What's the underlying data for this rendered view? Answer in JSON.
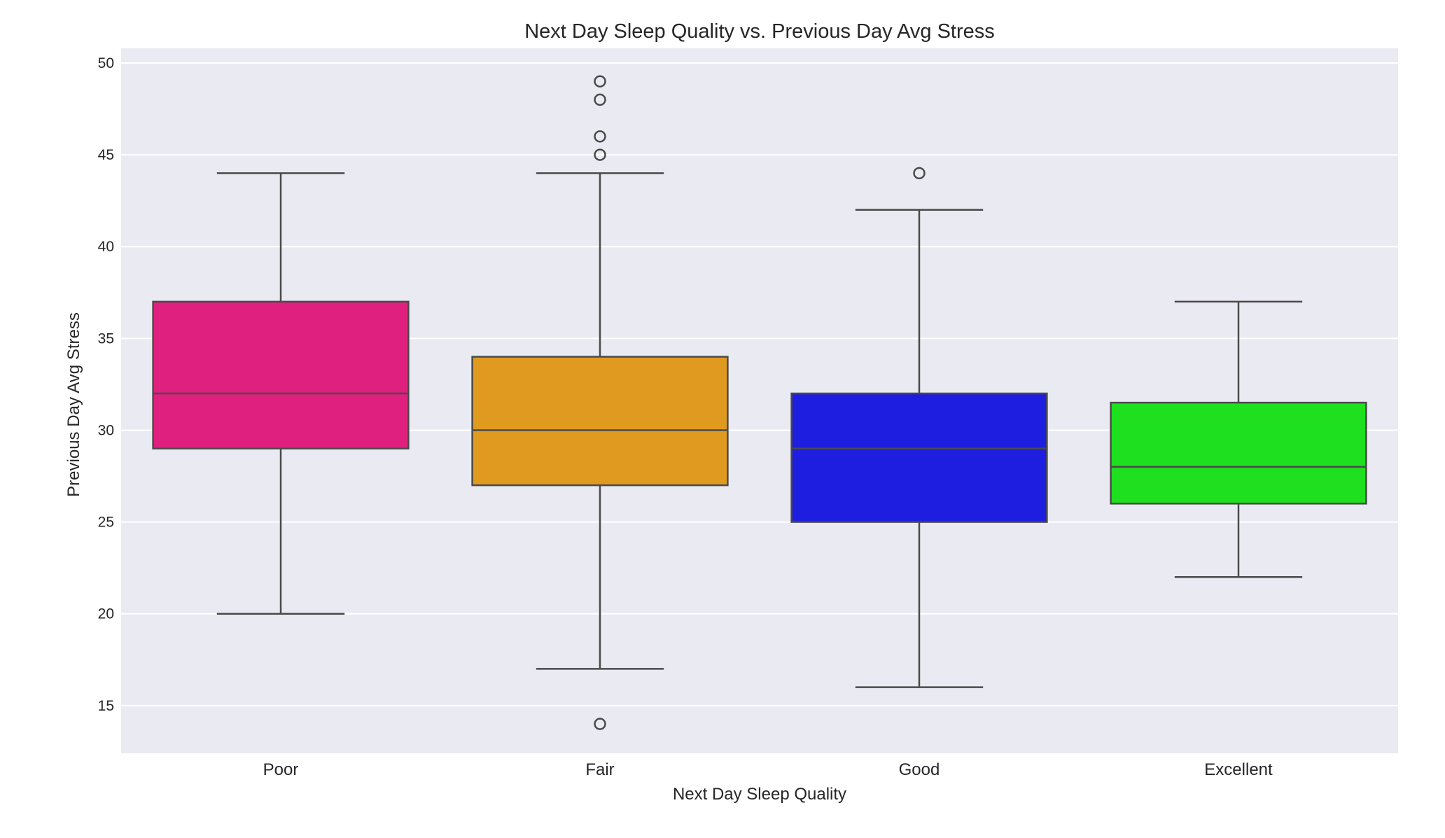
{
  "chart_data": {
    "type": "box",
    "title": "Next Day Sleep Quality vs. Previous Day Avg Stress",
    "xlabel": "Next Day Sleep Quality",
    "ylabel": "Previous Day Avg Stress",
    "ylim": [
      12.4,
      50.8
    ],
    "yticks": [
      15,
      20,
      25,
      30,
      35,
      40,
      45,
      50
    ],
    "grid": true,
    "background": "#eaeaf2",
    "categories": [
      "Poor",
      "Fair",
      "Good",
      "Excellent"
    ],
    "boxes": [
      {
        "category": "Poor",
        "whisker_low": 20,
        "q1": 29,
        "median": 32,
        "q3": 37,
        "whisker_high": 44,
        "outliers": [],
        "color": "#e0207f"
      },
      {
        "category": "Fair",
        "whisker_low": 17,
        "q1": 27,
        "median": 30,
        "q3": 34,
        "whisker_high": 44,
        "outliers": [
          14,
          45,
          46,
          48,
          49
        ],
        "color": "#e09a20"
      },
      {
        "category": "Good",
        "whisker_low": 16,
        "q1": 25,
        "median": 29,
        "q3": 32,
        "whisker_high": 42,
        "outliers": [
          44
        ],
        "color": "#1e1ee0"
      },
      {
        "category": "Excellent",
        "whisker_low": 22,
        "q1": 26,
        "median": 28,
        "q3": 31.5,
        "whisker_high": 37,
        "outliers": [],
        "color": "#1ee01e"
      }
    ]
  }
}
